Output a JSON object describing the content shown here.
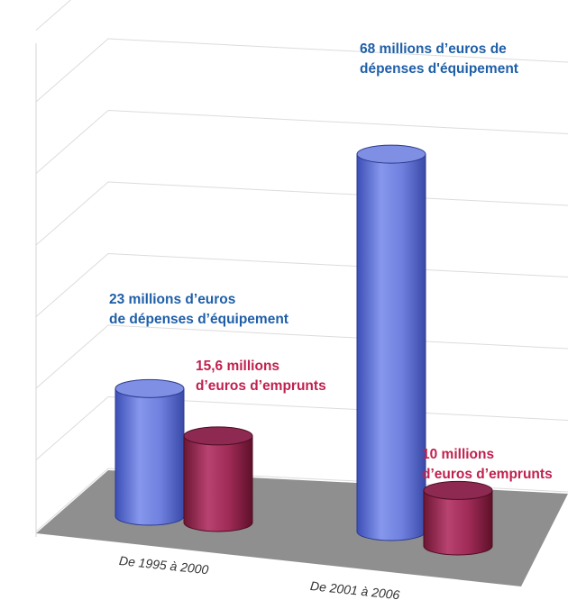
{
  "chart_data": {
    "type": "bar",
    "categories": [
      "De 1995 à 2000",
      "De 2001 à 2006"
    ],
    "series": [
      {
        "values": [
          23,
          68
        ],
        "color": "#5b6fd0"
      },
      {
        "values": [
          15.6,
          10
        ],
        "color": "#a0254e"
      }
    ],
    "ylim": [
      0,
      70
    ],
    "grid": true,
    "three_d": true,
    "data_labels": [
      {
        "line1": "23 millions d’euros",
        "line2": "de dépenses d’équipement",
        "color": "#1f5fa8"
      },
      {
        "line1": "15,6 millions",
        "line2": "d’euros d’emprunts",
        "color": "#c0214f"
      },
      {
        "line1": "68 millions d’euros de",
        "line2": "dépenses d'équipement",
        "color": "#1f5fa8"
      },
      {
        "line1": "10 millions",
        "line2": "d’euros d’emprunts",
        "color": "#c0214f"
      }
    ]
  },
  "floor_color": "#8f8f8f"
}
